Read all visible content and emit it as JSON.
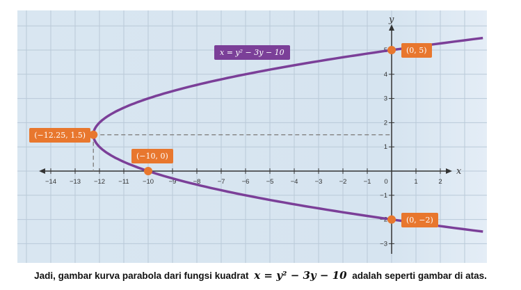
{
  "chart_data": {
    "type": "line",
    "title": "",
    "xlabel": "x",
    "ylabel": "y",
    "xlim": [
      -15.1,
      3.9
    ],
    "ylim": [
      -3.6,
      6.6
    ],
    "grid": true,
    "x_ticks": [
      "-14",
      "-13",
      "-12",
      "-11",
      "-10",
      "-9",
      "-8",
      "-7",
      "-6",
      "-5",
      "-4",
      "-3",
      "-2",
      "-1",
      "0",
      "1",
      "2"
    ],
    "y_ticks": [
      "-3",
      "-2",
      "-1",
      "1",
      "2",
      "3",
      "4",
      "5"
    ],
    "series": [
      {
        "name": "x = y² − 3y − 10",
        "equation": "x = y^2 - 3y - 10",
        "y_range": [
          -2.5,
          5.5
        ],
        "color": "#7b3f98"
      }
    ],
    "points": [
      {
        "x": -12.25,
        "y": 1.5,
        "label": "(−12.25, 1.5)"
      },
      {
        "x": -10,
        "y": 0,
        "label": "(−10, 0)"
      },
      {
        "x": 0,
        "y": 5,
        "label": "(0, 5)"
      },
      {
        "x": 0,
        "y": -2,
        "label": "(0, −2)"
      }
    ],
    "point_color": "#e8772e",
    "background": "#d6e4f0"
  },
  "equation_label": "x = y² − 3y − 10",
  "caption": {
    "before": "Jadi, gambar kurva parabola dari fungsi kuadrat",
    "math": "x = y² − 3y − 10",
    "after": "adalah seperti gambar di atas."
  }
}
